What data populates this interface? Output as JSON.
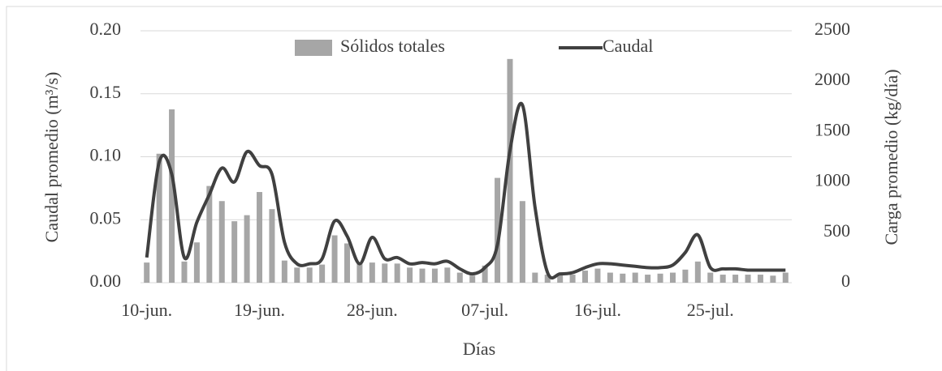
{
  "chart_data": {
    "type": "bar-line",
    "x_label": "Días",
    "y_label": "Caudal promedio (m³/s)",
    "y2_label": "Carga promedio (kg/día)",
    "categories": [
      "10-jun.",
      null,
      null,
      null,
      null,
      null,
      null,
      null,
      null,
      "19-jun.",
      null,
      null,
      null,
      null,
      null,
      null,
      null,
      null,
      "28-jun.",
      null,
      null,
      null,
      null,
      null,
      null,
      null,
      null,
      "07-jul.",
      null,
      null,
      null,
      null,
      null,
      null,
      null,
      null,
      "16-jul.",
      null,
      null,
      null,
      null,
      null,
      null,
      null,
      null,
      "25-jul.",
      null,
      null,
      null,
      null,
      null,
      null
    ],
    "series": [
      {
        "name": "Sólidos totales",
        "color": "#a6a6a6",
        "axis": "y2",
        "kind": "bar",
        "values": [
          200,
          1280,
          1720,
          210,
          400,
          960,
          810,
          610,
          670,
          900,
          730,
          220,
          150,
          150,
          180,
          470,
          390,
          190,
          200,
          190,
          190,
          150,
          140,
          140,
          150,
          100,
          70,
          170,
          1040,
          2220,
          810,
          100,
          80,
          80,
          80,
          120,
          140,
          100,
          90,
          100,
          80,
          90,
          100,
          130,
          210,
          100,
          80,
          80,
          80,
          80,
          70,
          100
        ]
      },
      {
        "name": "Caudal",
        "color": "#404040",
        "axis": "y",
        "kind": "line",
        "values": [
          0.02,
          0.096,
          0.086,
          0.02,
          0.048,
          0.07,
          0.091,
          0.08,
          0.104,
          0.093,
          0.086,
          0.032,
          0.015,
          0.015,
          0.019,
          0.049,
          0.037,
          0.015,
          0.036,
          0.019,
          0.02,
          0.015,
          0.016,
          0.015,
          0.017,
          0.011,
          0.007,
          0.012,
          0.03,
          0.105,
          0.141,
          0.06,
          0.008,
          0.007,
          0.008,
          0.012,
          0.015,
          0.015,
          0.014,
          0.013,
          0.012,
          0.012,
          0.014,
          0.024,
          0.038,
          0.012,
          0.011,
          0.011,
          0.01,
          0.01,
          0.01,
          0.01
        ]
      }
    ],
    "ylim": [
      0,
      0.2
    ],
    "yticks": [
      {
        "value": 0,
        "label": "0.00"
      },
      {
        "value": 0.05,
        "label": "0.05"
      },
      {
        "value": 0.1,
        "label": "0.10"
      },
      {
        "value": 0.15,
        "label": "0.15"
      },
      {
        "value": 0.2,
        "label": "0.20"
      }
    ],
    "y2lim": [
      0,
      2500
    ],
    "y2ticks": [
      0,
      500,
      1000,
      1500,
      2000,
      2500
    ],
    "grid": true,
    "legend": "top"
  }
}
